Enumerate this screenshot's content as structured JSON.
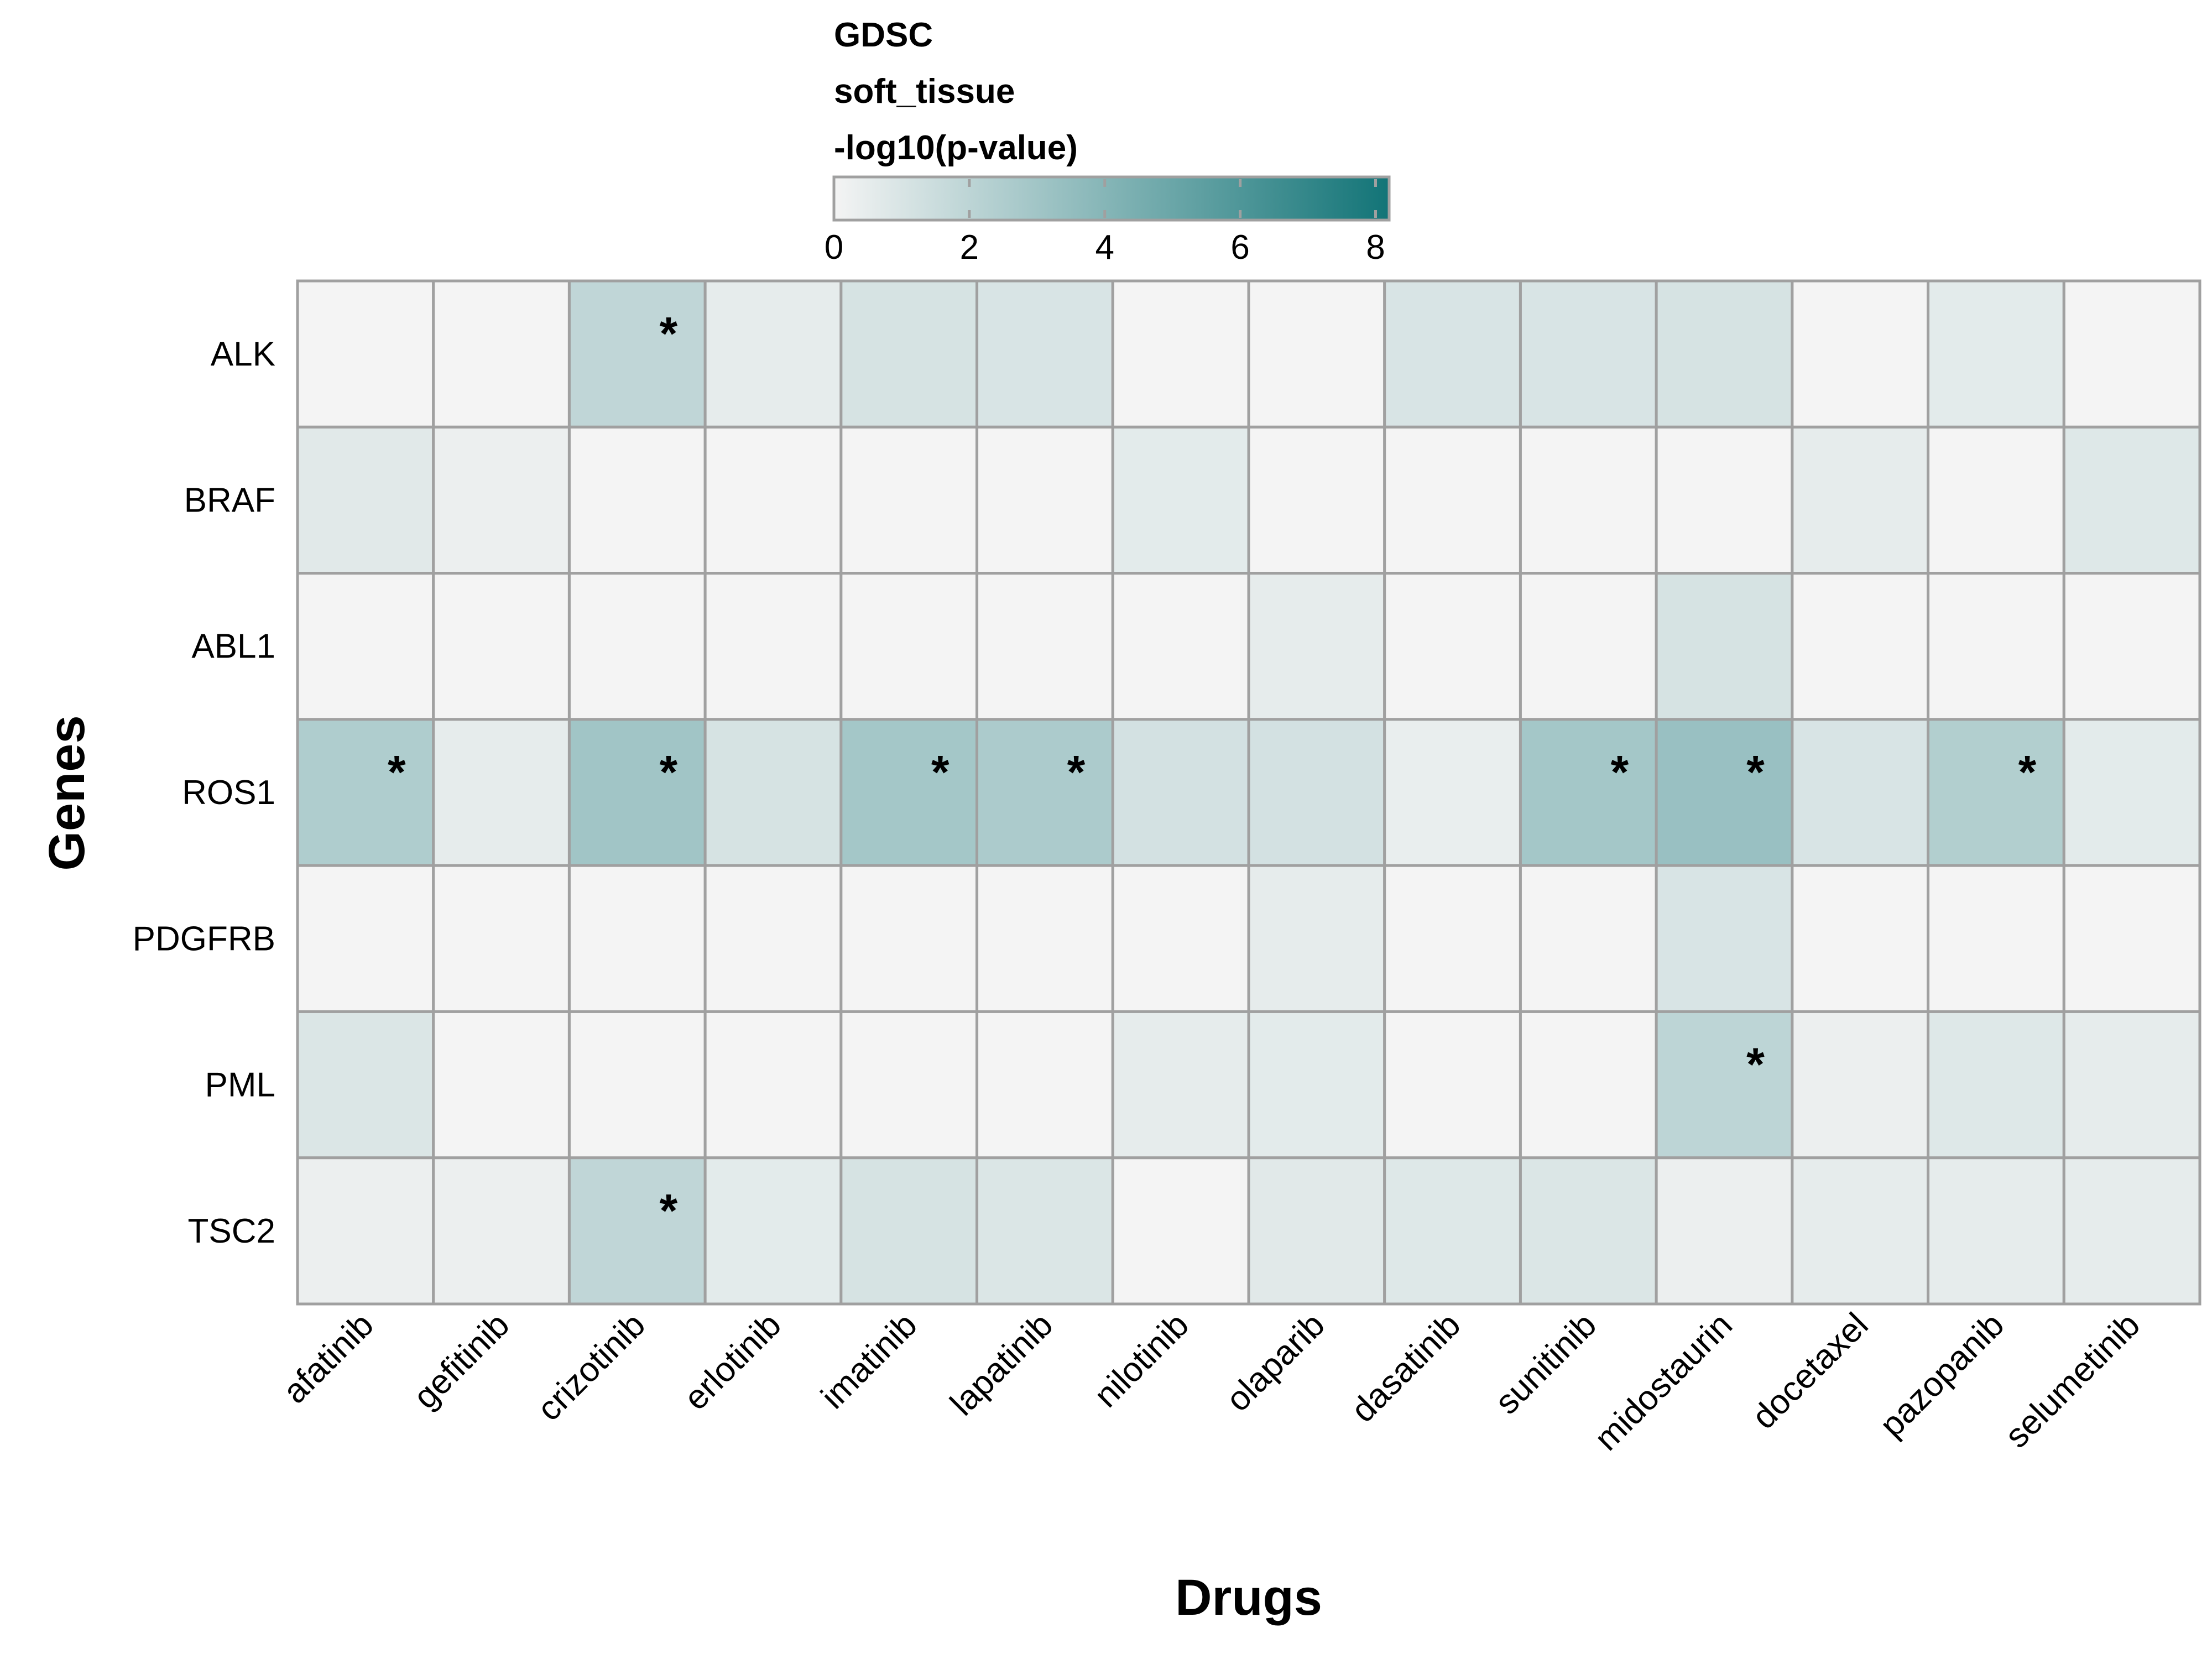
{
  "chart_data": {
    "type": "heatmap",
    "legend": {
      "title_lines": [
        "GDSC",
        "soft_tissue",
        "-log10(p-value)"
      ],
      "ticks": [
        0,
        2,
        4,
        6,
        8
      ],
      "range": [
        0,
        8.2
      ],
      "color_low": "#f4f4f4",
      "color_high": "#127477"
    },
    "xlabel": "Drugs",
    "ylabel": "Genes",
    "columns": [
      "afatinib",
      "gefitinib",
      "crizotinib",
      "erlotinib",
      "imatinib",
      "lapatinib",
      "nilotinib",
      "olaparib",
      "dasatinib",
      "sunitinib",
      "midostaurin",
      "docetaxel",
      "pazopanib",
      "selumetinib"
    ],
    "rows": [
      "ALK",
      "BRAF",
      "ABL1",
      "ROS1",
      "PDGFRB",
      "PML",
      "TSC2"
    ],
    "values": [
      [
        0.0,
        0.0,
        1.9,
        0.5,
        1.1,
        1.0,
        0.0,
        0.0,
        1.0,
        1.0,
        1.1,
        0.0,
        0.6,
        0.0
      ],
      [
        0.7,
        0.3,
        0.0,
        0.0,
        0.0,
        0.0,
        0.6,
        0.0,
        0.0,
        0.0,
        0.0,
        0.5,
        0.0,
        0.8
      ],
      [
        0.0,
        0.0,
        0.0,
        0.0,
        0.0,
        0.0,
        0.0,
        0.5,
        0.0,
        0.0,
        1.1,
        0.0,
        0.0,
        0.0
      ],
      [
        2.5,
        0.5,
        3.0,
        1.1,
        2.9,
        2.6,
        1.2,
        1.2,
        0.4,
        2.9,
        3.3,
        1.0,
        2.4,
        0.6
      ],
      [
        0.0,
        0.0,
        0.0,
        0.0,
        0.0,
        0.0,
        0.0,
        0.5,
        0.0,
        0.0,
        1.0,
        0.0,
        0.0,
        0.0
      ],
      [
        0.9,
        0.0,
        0.0,
        0.0,
        0.0,
        0.0,
        0.5,
        0.6,
        0.0,
        0.0,
        2.0,
        0.3,
        0.8,
        0.5
      ],
      [
        0.3,
        0.3,
        1.9,
        0.6,
        1.1,
        0.9,
        0.0,
        0.7,
        0.8,
        0.9,
        0.3,
        0.5,
        0.5,
        0.5
      ]
    ],
    "significant": [
      [
        "ALK",
        "crizotinib"
      ],
      [
        "ROS1",
        "afatinib"
      ],
      [
        "ROS1",
        "crizotinib"
      ],
      [
        "ROS1",
        "imatinib"
      ],
      [
        "ROS1",
        "lapatinib"
      ],
      [
        "ROS1",
        "sunitinib"
      ],
      [
        "ROS1",
        "midostaurin"
      ],
      [
        "ROS1",
        "pazopanib"
      ],
      [
        "PML",
        "midostaurin"
      ],
      [
        "TSC2",
        "crizotinib"
      ]
    ],
    "significance_marker": "*",
    "grid_color": "#a0a0a0"
  }
}
